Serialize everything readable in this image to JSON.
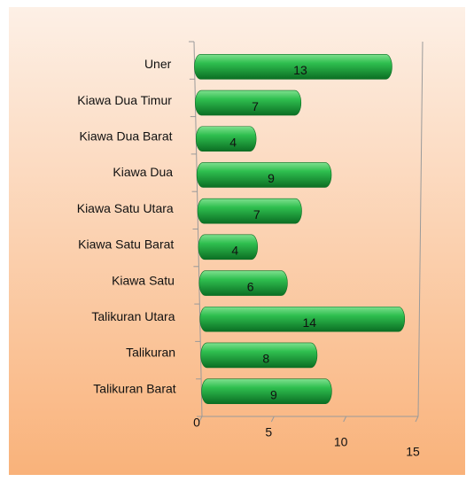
{
  "chart_data": {
    "type": "bar",
    "orientation": "horizontal",
    "categories": [
      "Uner",
      "Kiawa Dua Timur",
      "Kiawa Dua Barat",
      "Kiawa Dua",
      "Kiawa Satu Utara",
      "Kiawa Satu Barat",
      "Kiawa Satu",
      "Talikuran Utara",
      "Talikuran",
      "Talikuran Barat"
    ],
    "values": [
      13,
      7,
      4,
      9,
      7,
      4,
      6,
      14,
      8,
      9
    ],
    "color": "#1fa53c",
    "xlim": [
      0,
      15
    ],
    "xticks": [
      0,
      5,
      10,
      15
    ]
  }
}
